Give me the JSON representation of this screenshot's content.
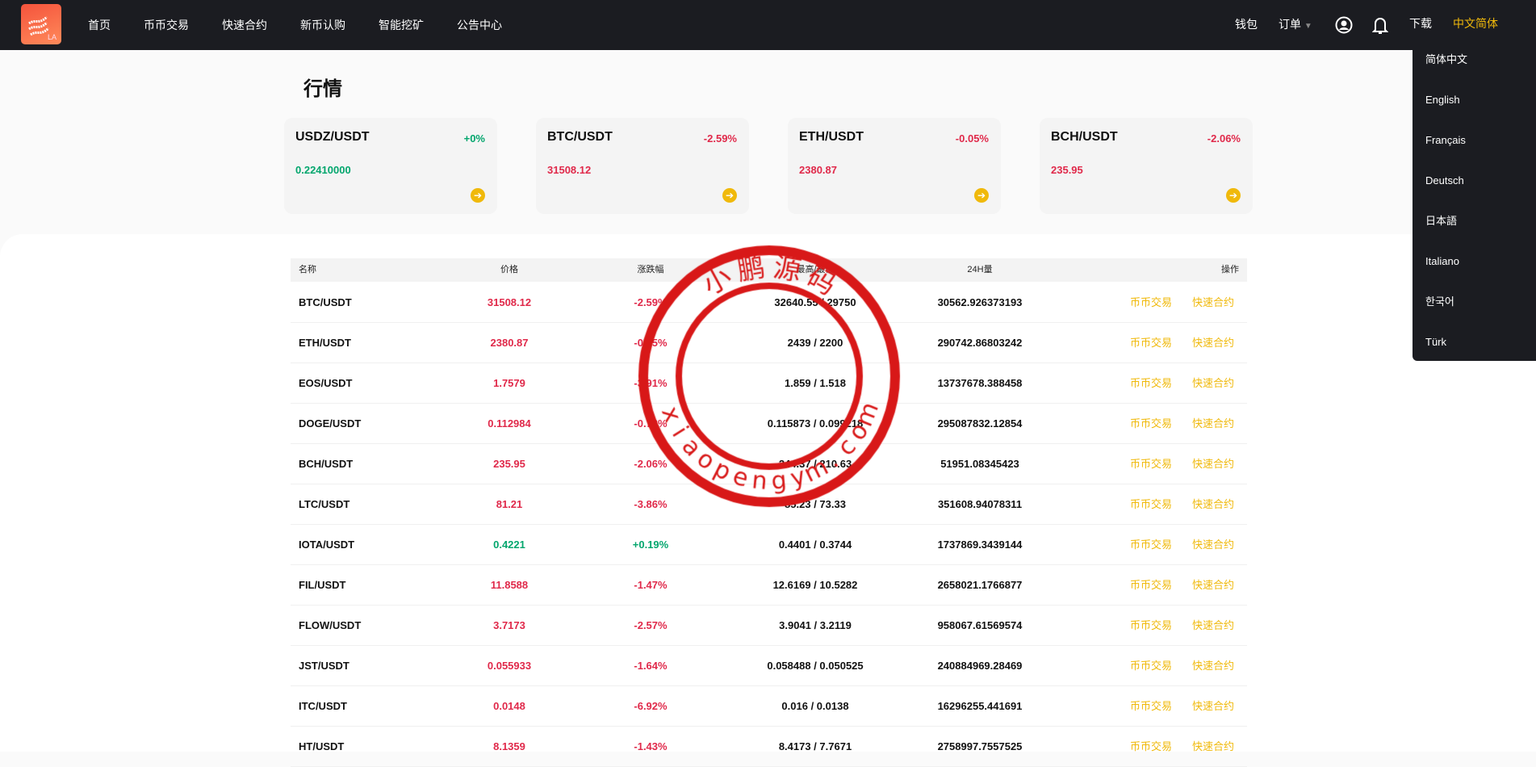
{
  "header": {
    "logo_text": "LA",
    "nav": [
      "首页",
      "币币交易",
      "快速合约",
      "新币认购",
      "智能挖矿",
      "公告中心"
    ],
    "wallet": "钱包",
    "orders": "订单",
    "download": "下载",
    "language": "中文简体"
  },
  "language_menu": [
    "简体中文",
    "English",
    "Français",
    "Deutsch",
    "日本語",
    "Italiano",
    "한국어",
    "Türk"
  ],
  "page_title": "行情",
  "cards": [
    {
      "pair": "USDZ/USDT",
      "change": "+0%",
      "price": "0.22410000",
      "trend": "up"
    },
    {
      "pair": "BTC/USDT",
      "change": "-2.59%",
      "price": "31508.12",
      "trend": "down"
    },
    {
      "pair": "ETH/USDT",
      "change": "-0.05%",
      "price": "2380.87",
      "trend": "down"
    },
    {
      "pair": "BCH/USDT",
      "change": "-2.06%",
      "price": "235.95",
      "trend": "down"
    }
  ],
  "table": {
    "headers": [
      "名称",
      "价格",
      "涨跌幅",
      "最高/最低",
      "24H量",
      "操作"
    ],
    "action_spot": "币币交易",
    "action_contract": "快速合约",
    "rows": [
      {
        "pair": "BTC/USDT",
        "price": "31508.12",
        "change": "-2.59%",
        "highlow": "32640.55 / 29750",
        "volume": "30562.926373193",
        "trend": "down"
      },
      {
        "pair": "ETH/USDT",
        "price": "2380.87",
        "change": "-0.05%",
        "highlow": "2439 / 2200",
        "volume": "290742.86803242",
        "trend": "down"
      },
      {
        "pair": "EOS/USDT",
        "price": "1.7579",
        "change": "-3.91%",
        "highlow": "1.859 / 1.518",
        "volume": "13737678.388458",
        "trend": "down"
      },
      {
        "pair": "DOGE/USDT",
        "price": "0.112984",
        "change": "-0.78%",
        "highlow": "0.115873 / 0.099218",
        "volume": "295087832.12854",
        "trend": "down"
      },
      {
        "pair": "BCH/USDT",
        "price": "235.95",
        "change": "-2.06%",
        "highlow": "244.37 / 210.63",
        "volume": "51951.08345423",
        "trend": "down"
      },
      {
        "pair": "LTC/USDT",
        "price": "81.21",
        "change": "-3.86%",
        "highlow": "85.23 / 73.33",
        "volume": "351608.94078311",
        "trend": "down"
      },
      {
        "pair": "IOTA/USDT",
        "price": "0.4221",
        "change": "+0.19%",
        "highlow": "0.4401 / 0.3744",
        "volume": "1737869.3439144",
        "trend": "up"
      },
      {
        "pair": "FIL/USDT",
        "price": "11.8588",
        "change": "-1.47%",
        "highlow": "12.6169 / 10.5282",
        "volume": "2658021.1766877",
        "trend": "down"
      },
      {
        "pair": "FLOW/USDT",
        "price": "3.7173",
        "change": "-2.57%",
        "highlow": "3.9041 / 3.2119",
        "volume": "958067.61569574",
        "trend": "down"
      },
      {
        "pair": "JST/USDT",
        "price": "0.055933",
        "change": "-1.64%",
        "highlow": "0.058488 / 0.050525",
        "volume": "240884969.28469",
        "trend": "down"
      },
      {
        "pair": "ITC/USDT",
        "price": "0.0148",
        "change": "-6.92%",
        "highlow": "0.016 / 0.0138",
        "volume": "16296255.441691",
        "trend": "down"
      },
      {
        "pair": "HT/USDT",
        "price": "8.1359",
        "change": "-1.43%",
        "highlow": "8.4173 / 7.7671",
        "volume": "2758997.7557525",
        "trend": "down"
      }
    ]
  },
  "watermark": {
    "top": "小鹏源码",
    "bottom": "xiaopengym.com"
  },
  "colors": {
    "up": "#03a66d",
    "down": "#e0294a",
    "accent": "#f0b90b",
    "header": "#1b1c21"
  }
}
